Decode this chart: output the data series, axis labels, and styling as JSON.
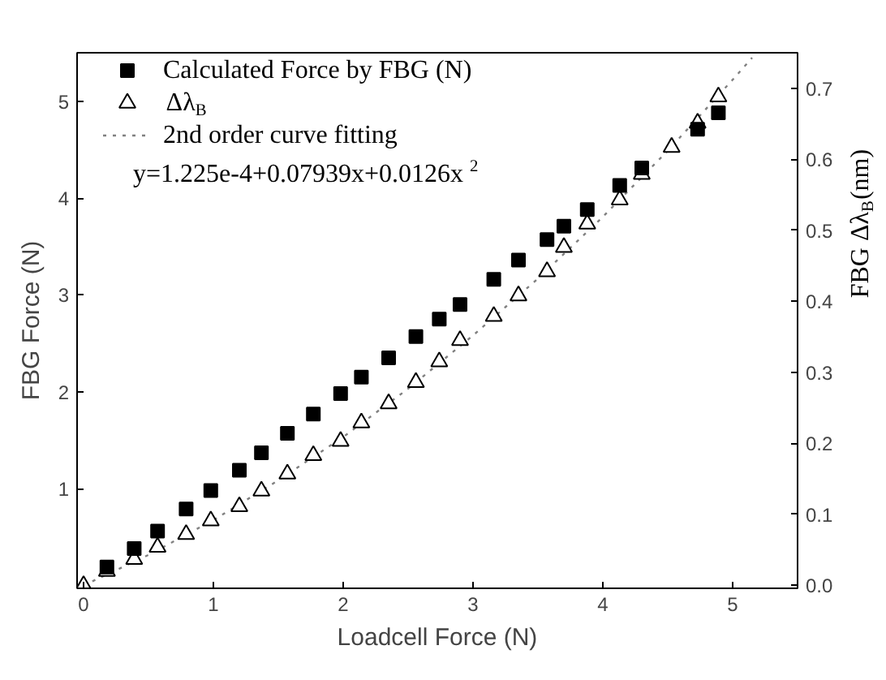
{
  "chart_data": {
    "type": "scatter",
    "xlabel": "Loadcell Force (N)",
    "ylabel": "FBG Force (N)",
    "y2label": "FBG Δλ$_{B}$(nm)",
    "xlim": [
      -0.05,
      5.5
    ],
    "ylim": [
      -0.03,
      5.5
    ],
    "y2lim": [
      -0.004,
      0.75
    ],
    "xticks": [
      0,
      1,
      2,
      3,
      4,
      5
    ],
    "yticks": [
      1,
      2,
      3,
      4,
      5
    ],
    "y2ticks": [
      {
        "value": 0,
        "label": "0.0"
      },
      0.1,
      0.2,
      0.3,
      0.4,
      0.5,
      0.6,
      0.7
    ],
    "legend": "top left",
    "grid": false,
    "annotations": [
      "y=1.225e-4+0.07939x+0.0126x $^{2}$"
    ],
    "series": [
      {
        "name": "Calculated Force by FBG (N)",
        "marker": "square",
        "color": "#000000",
        "x": [
          0.18,
          0.39,
          0.57,
          0.79,
          0.98,
          1.2,
          1.37,
          1.57,
          1.77,
          1.98,
          2.14,
          2.35,
          2.56,
          2.74,
          2.9,
          3.16,
          3.35,
          3.57,
          3.7,
          3.88,
          4.13,
          4.3,
          4.73,
          4.89
        ],
        "values": [
          0.19,
          0.38,
          0.56,
          0.79,
          0.98,
          1.19,
          1.37,
          1.57,
          1.77,
          1.98,
          2.15,
          2.35,
          2.57,
          2.75,
          2.9,
          3.16,
          3.36,
          3.57,
          3.71,
          3.88,
          4.13,
          4.31,
          4.71,
          4.88
        ]
      },
      {
        "name": "Δλ$_{B}$",
        "marker": "triangle",
        "color": "#000000",
        "axis": "y2",
        "x": [
          0,
          0.18,
          0.39,
          0.57,
          0.79,
          0.98,
          1.2,
          1.37,
          1.57,
          1.77,
          1.98,
          2.14,
          2.35,
          2.56,
          2.74,
          2.9,
          3.16,
          3.35,
          3.57,
          3.7,
          3.88,
          4.13,
          4.3,
          4.53,
          4.73,
          4.89
        ],
        "values": [
          0,
          0.02,
          0.037,
          0.054,
          0.072,
          0.091,
          0.111,
          0.133,
          0.157,
          0.183,
          0.203,
          0.229,
          0.256,
          0.286,
          0.315,
          0.345,
          0.379,
          0.408,
          0.442,
          0.476,
          0.509,
          0.543,
          0.579,
          0.617,
          0.651,
          0.688
        ]
      },
      {
        "name": "2nd order curve fitting",
        "type": "line",
        "line_style": "dotted",
        "color": "#808080",
        "axis": "y2",
        "x": [
          0,
          0.5,
          1,
          1.5,
          2,
          2.5,
          3,
          3.5,
          4,
          4.5,
          5,
          5.15
        ],
        "values": [
          0,
          0.043,
          0.092,
          0.148,
          0.209,
          0.277,
          0.352,
          0.432,
          0.519,
          0.612,
          0.712,
          0.743
        ]
      }
    ]
  }
}
